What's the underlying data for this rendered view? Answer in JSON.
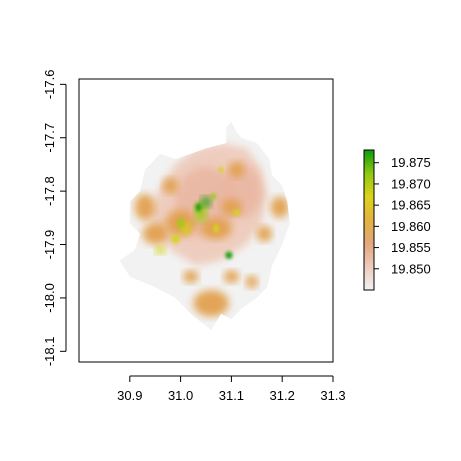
{
  "chart_data": {
    "type": "heatmap",
    "title": "",
    "xlabel": "",
    "ylabel": "",
    "xlim": [
      30.8,
      31.3
    ],
    "ylim": [
      -18.12,
      -17.59
    ],
    "x_ticks": [
      "30.9",
      "31.0",
      "31.1",
      "31.2",
      "31.3"
    ],
    "x_tick_values": [
      30.9,
      31.0,
      31.1,
      31.2,
      31.3
    ],
    "y_ticks": [
      "-17.6",
      "-17.7",
      "-17.8",
      "-17.9",
      "-18.0",
      "-18.1"
    ],
    "y_tick_values": [
      -17.6,
      -17.7,
      -17.8,
      -17.9,
      -18.0,
      -18.1
    ],
    "legend": {
      "placement": "right",
      "range": [
        19.845,
        19.878
      ],
      "ticks": [
        "19.875",
        "19.870",
        "19.865",
        "19.860",
        "19.855",
        "19.850"
      ],
      "tick_values": [
        19.875,
        19.87,
        19.865,
        19.86,
        19.855,
        19.85
      ],
      "colors": [
        "#f2f2f2",
        "#eccbbb",
        "#e3a67b",
        "#e2b43c",
        "#dcd21b",
        "#8fc80f",
        "#0b9b0b"
      ]
    },
    "colors": {
      "base": "#f2f2f2",
      "pale_salmon": "#eecdbe",
      "salmon": "#e9b29c",
      "orange": "#e2a04f",
      "yellow": "#d4d41a",
      "yellow_green": "#9ccb12",
      "green": "#1e9d0d"
    },
    "boundary": [
      [
        31.1,
        -17.67
      ],
      [
        31.11,
        -17.69
      ],
      [
        31.12,
        -17.7
      ],
      [
        31.15,
        -17.71
      ],
      [
        31.175,
        -17.74
      ],
      [
        31.18,
        -17.77
      ],
      [
        31.2,
        -17.79
      ],
      [
        31.21,
        -17.82
      ],
      [
        31.215,
        -17.86
      ],
      [
        31.2,
        -17.9
      ],
      [
        31.18,
        -17.94
      ],
      [
        31.17,
        -17.98
      ],
      [
        31.15,
        -18.0
      ],
      [
        31.12,
        -18.02
      ],
      [
        31.1,
        -18.04
      ],
      [
        31.08,
        -18.03
      ],
      [
        31.06,
        -18.06
      ],
      [
        31.02,
        -18.03
      ],
      [
        30.99,
        -18.0
      ],
      [
        30.95,
        -17.98
      ],
      [
        30.9,
        -17.96
      ],
      [
        30.88,
        -17.93
      ],
      [
        30.91,
        -17.91
      ],
      [
        30.92,
        -17.88
      ],
      [
        30.9,
        -17.86
      ],
      [
        30.9,
        -17.82
      ],
      [
        30.92,
        -17.8
      ],
      [
        30.93,
        -17.76
      ],
      [
        30.96,
        -17.73
      ],
      [
        30.99,
        -17.74
      ],
      [
        31.02,
        -17.73
      ],
      [
        31.05,
        -17.72
      ],
      [
        31.09,
        -17.71
      ],
      [
        31.09,
        -17.68
      ]
    ],
    "urban_core": [
      [
        31.03,
        -17.72
      ],
      [
        31.08,
        -17.71
      ],
      [
        31.13,
        -17.72
      ],
      [
        31.16,
        -17.76
      ],
      [
        31.17,
        -17.81
      ],
      [
        31.16,
        -17.86
      ],
      [
        31.13,
        -17.9
      ],
      [
        31.08,
        -17.93
      ],
      [
        31.03,
        -17.94
      ],
      [
        30.98,
        -17.91
      ],
      [
        30.95,
        -17.88
      ],
      [
        30.94,
        -17.84
      ],
      [
        30.96,
        -17.79
      ],
      [
        30.99,
        -17.75
      ]
    ],
    "blobs": [
      {
        "x": 31.05,
        "y": -17.82,
        "rx": 0.06,
        "ry": 0.065,
        "level": "salmon"
      },
      {
        "x": 31.12,
        "y": -17.8,
        "rx": 0.04,
        "ry": 0.05,
        "level": "salmon"
      },
      {
        "x": 30.93,
        "y": -17.83,
        "rx": 0.02,
        "ry": 0.025,
        "level": "orange"
      },
      {
        "x": 30.95,
        "y": -17.88,
        "rx": 0.025,
        "ry": 0.02,
        "level": "orange"
      },
      {
        "x": 31.0,
        "y": -17.86,
        "rx": 0.03,
        "ry": 0.025,
        "level": "orange"
      },
      {
        "x": 31.07,
        "y": -17.87,
        "rx": 0.03,
        "ry": 0.02,
        "level": "orange"
      },
      {
        "x": 31.1,
        "y": -17.83,
        "rx": 0.02,
        "ry": 0.015,
        "level": "orange"
      },
      {
        "x": 31.195,
        "y": -17.83,
        "rx": 0.018,
        "ry": 0.02,
        "level": "orange"
      },
      {
        "x": 31.165,
        "y": -17.88,
        "rx": 0.015,
        "ry": 0.015,
        "level": "orange"
      },
      {
        "x": 31.11,
        "y": -17.76,
        "rx": 0.015,
        "ry": 0.015,
        "level": "orange"
      },
      {
        "x": 30.98,
        "y": -17.79,
        "rx": 0.015,
        "ry": 0.015,
        "level": "orange"
      },
      {
        "x": 31.06,
        "y": -18.01,
        "rx": 0.035,
        "ry": 0.025,
        "level": "orange"
      },
      {
        "x": 31.02,
        "y": -17.96,
        "rx": 0.015,
        "ry": 0.012,
        "level": "orange"
      },
      {
        "x": 31.1,
        "y": -17.96,
        "rx": 0.015,
        "ry": 0.012,
        "level": "orange"
      },
      {
        "x": 31.14,
        "y": -17.97,
        "rx": 0.012,
        "ry": 0.012,
        "level": "orange"
      },
      {
        "x": 30.96,
        "y": -17.91,
        "rx": 0.01,
        "ry": 0.008,
        "level": "yellow"
      },
      {
        "x": 30.99,
        "y": -17.89,
        "rx": 0.008,
        "ry": 0.008,
        "level": "yellow"
      },
      {
        "x": 31.01,
        "y": -17.87,
        "rx": 0.01,
        "ry": 0.012,
        "level": "yellow"
      },
      {
        "x": 31.04,
        "y": -17.84,
        "rx": 0.012,
        "ry": 0.018,
        "level": "yellow_green"
      },
      {
        "x": 31.07,
        "y": -17.87,
        "rx": 0.006,
        "ry": 0.008,
        "level": "yellow"
      },
      {
        "x": 31.11,
        "y": -17.84,
        "rx": 0.008,
        "ry": 0.005,
        "level": "yellow"
      },
      {
        "x": 31.05,
        "y": -17.82,
        "rx": 0.01,
        "ry": 0.01,
        "level": "green"
      },
      {
        "x": 31.035,
        "y": -17.83,
        "rx": 0.006,
        "ry": 0.008,
        "level": "green"
      },
      {
        "x": 31.065,
        "y": -17.81,
        "rx": 0.005,
        "ry": 0.006,
        "level": "yellow_green"
      },
      {
        "x": 31.0,
        "y": -17.86,
        "rx": 0.006,
        "ry": 0.01,
        "level": "yellow_green"
      },
      {
        "x": 31.08,
        "y": -17.76,
        "rx": 0.005,
        "ry": 0.005,
        "level": "yellow"
      },
      {
        "x": 31.095,
        "y": -17.92,
        "rx": 0.007,
        "ry": 0.007,
        "level": "green"
      }
    ]
  }
}
